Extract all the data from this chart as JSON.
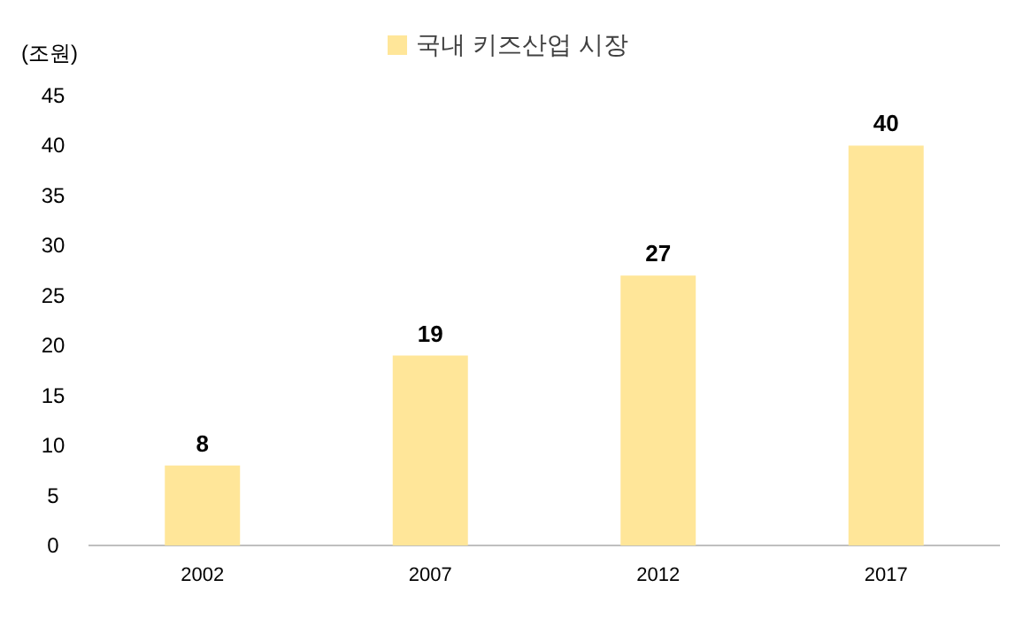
{
  "chart_data": {
    "type": "bar",
    "ylabel": "(조원)",
    "categories": [
      "2002",
      "2007",
      "2012",
      "2017"
    ],
    "series": [
      {
        "name": "국내 키즈산업 시장",
        "color": "#ffe699",
        "values": [
          8,
          19,
          27,
          40
        ]
      }
    ],
    "ylim": [
      0,
      45
    ],
    "yticks": [
      0,
      5,
      10,
      15,
      20,
      25,
      30,
      35,
      40,
      45
    ],
    "data_labels": true,
    "legend": "top",
    "grid": false
  }
}
